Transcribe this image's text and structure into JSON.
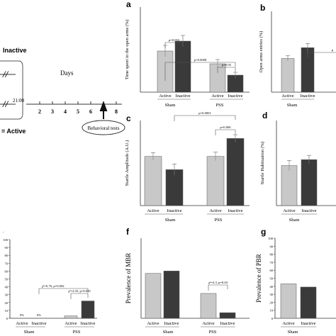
{
  "schematic": {
    "inactive_label": "Inactive",
    "time_label": "21:00",
    "active_label": "= Active",
    "days_label": "Days",
    "day_ticks": [
      "2",
      "3",
      "4",
      "5",
      "6",
      "7",
      "8"
    ],
    "behavioral_tests_label": "Behavioral tests"
  },
  "colors": {
    "active": "#c8c8c8",
    "inactive": "#3a3a3a",
    "axis": "#333333"
  },
  "chart_data": [
    {
      "panel": "a",
      "type": "bar",
      "ylabel": "Time spent in the open arms (%)",
      "groups": [
        "Sham",
        "PSS"
      ],
      "categories": [
        "Active",
        "Inactive",
        "Active",
        "Inactive"
      ],
      "series": [
        {
          "values": [
            29,
            36,
            20,
            12
          ],
          "errors": [
            4,
            4,
            3,
            2
          ]
        }
      ],
      "ylim": [
        0,
        60
      ],
      "annotations": [
        "p=0.053",
        "p=0.0008",
        "p=0.05"
      ]
    },
    {
      "panel": "b",
      "type": "bar",
      "ylabel": "Open arms entries (%)",
      "groups": [
        "Sham"
      ],
      "categories": [
        "Active",
        "Inactive"
      ],
      "series": [
        {
          "values": [
            25,
            33
          ],
          "errors": [
            2,
            3
          ]
        }
      ],
      "ylim": [
        0,
        60
      ],
      "annotations": [
        "p"
      ]
    },
    {
      "panel": "c",
      "type": "bar",
      "ylabel": "Startle Amplitude (A.U.)",
      "groups": [
        "Sham",
        "PSS"
      ],
      "categories": [
        "Active",
        "Inactive",
        "Active",
        "Inactive"
      ],
      "series": [
        {
          "values": [
            520,
            380,
            520,
            710
          ],
          "errors": [
            40,
            60,
            45,
            40
          ]
        }
      ],
      "ylim": [
        0,
        900
      ],
      "annotations": [
        "p=0.0001",
        "p=0.006"
      ]
    },
    {
      "panel": "d",
      "type": "bar",
      "ylabel": "Startle Habituation (%)",
      "groups": [
        "Sham"
      ],
      "categories": [
        "Active",
        "Inactive"
      ],
      "series": [
        {
          "values": [
            47,
            54
          ],
          "errors": [
            6,
            5
          ]
        }
      ],
      "ylim": [
        0,
        100
      ]
    },
    {
      "panel": "e",
      "type": "bar",
      "yticks": [
        "100",
        "90",
        "80",
        "70",
        "60",
        "50",
        "40",
        "30",
        "20",
        "10",
        "0"
      ],
      "groups": [
        "Sham",
        "PSS"
      ],
      "categories": [
        "Active",
        "Inactive",
        "Active",
        "Inactive"
      ],
      "series": [
        {
          "values": [
            0,
            0,
            3,
            22
          ]
        }
      ],
      "ylim": [
        0,
        100
      ],
      "bar_labels": [
        "0%",
        "0%"
      ],
      "annotations": [
        "χ²=6.76, p=0.002",
        "χ²=4.35, p=0.035"
      ]
    },
    {
      "panel": "f",
      "type": "bar",
      "ylabel": "Prevalence of MBR",
      "groups": [
        "Sham",
        "PSS"
      ],
      "categories": [
        "Active",
        "Inactive",
        "Active",
        "Inactive"
      ],
      "series": [
        {
          "values": [
            56,
            59,
            31,
            7
          ]
        }
      ],
      "ylim": [
        0,
        100
      ],
      "annotations": [
        "χ²=4.3, p=0.04"
      ]
    },
    {
      "panel": "g",
      "type": "bar",
      "ylabel": "Prevalence of PBR",
      "yticks": [
        "100",
        "90",
        "80",
        "70",
        "60",
        "50",
        "40",
        "30",
        "20",
        "10",
        "0"
      ],
      "groups": [
        "Sham"
      ],
      "categories": [
        "Active",
        "Inactive"
      ],
      "series": [
        {
          "values": [
            43,
            39
          ]
        }
      ],
      "ylim": [
        0,
        100
      ]
    }
  ]
}
